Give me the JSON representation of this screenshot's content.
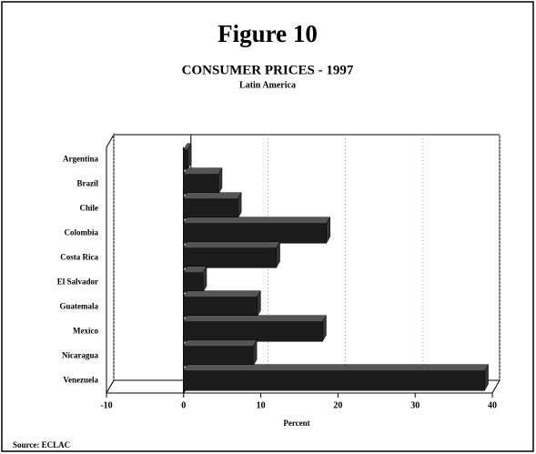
{
  "chart_data": {
    "type": "barh",
    "title": "Figure 10",
    "subtitle": "CONSUMER PRICES - 1997",
    "subtitle2": "Latin America",
    "xlabel": "Percent",
    "source": "Source: ECLAC",
    "categories": [
      "Argentina",
      "Brazil",
      "Chile",
      "Colombia",
      "Costa Rica",
      "El Salvador",
      "Guatemala",
      "Mexico",
      "Nicaragua",
      "Venezuela"
    ],
    "values": [
      0.5,
      4.5,
      7,
      18.5,
      12,
      2.5,
      9.5,
      18,
      9,
      39
    ],
    "color": "#1c1c1c",
    "xlim": [
      -10,
      40
    ],
    "xticks": [
      -10,
      0,
      10,
      20,
      30,
      40
    ],
    "grid": true
  }
}
